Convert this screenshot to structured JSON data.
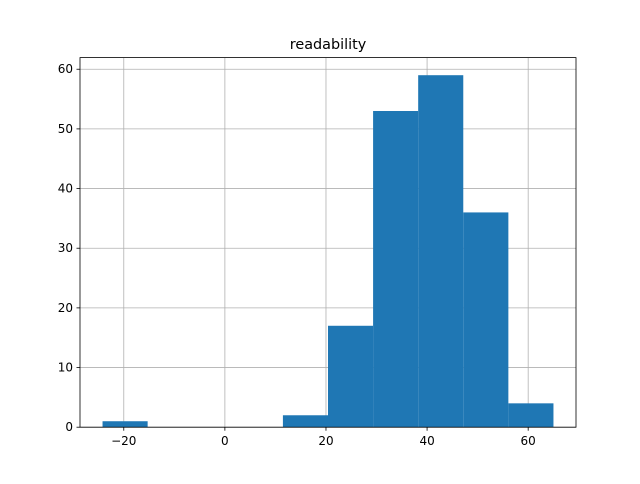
{
  "chart_data": {
    "type": "histogram",
    "title": "readability",
    "bins": [
      -24.2,
      -15.28,
      -6.36,
      2.56,
      11.48,
      20.4,
      29.32,
      38.24,
      47.16,
      56.08,
      65.0
    ],
    "counts": [
      1,
      0,
      0,
      0,
      2,
      17,
      53,
      59,
      36,
      4
    ],
    "color": "#1f77b4",
    "xlim": [
      -28.66,
      69.46
    ],
    "xticks": [
      {
        "value": -20,
        "label": "−20"
      },
      0,
      20,
      40,
      60
    ],
    "ylim": [
      0,
      61.95
    ],
    "yticks": [
      0,
      10,
      20,
      30,
      40,
      50,
      60
    ],
    "grid": true
  }
}
